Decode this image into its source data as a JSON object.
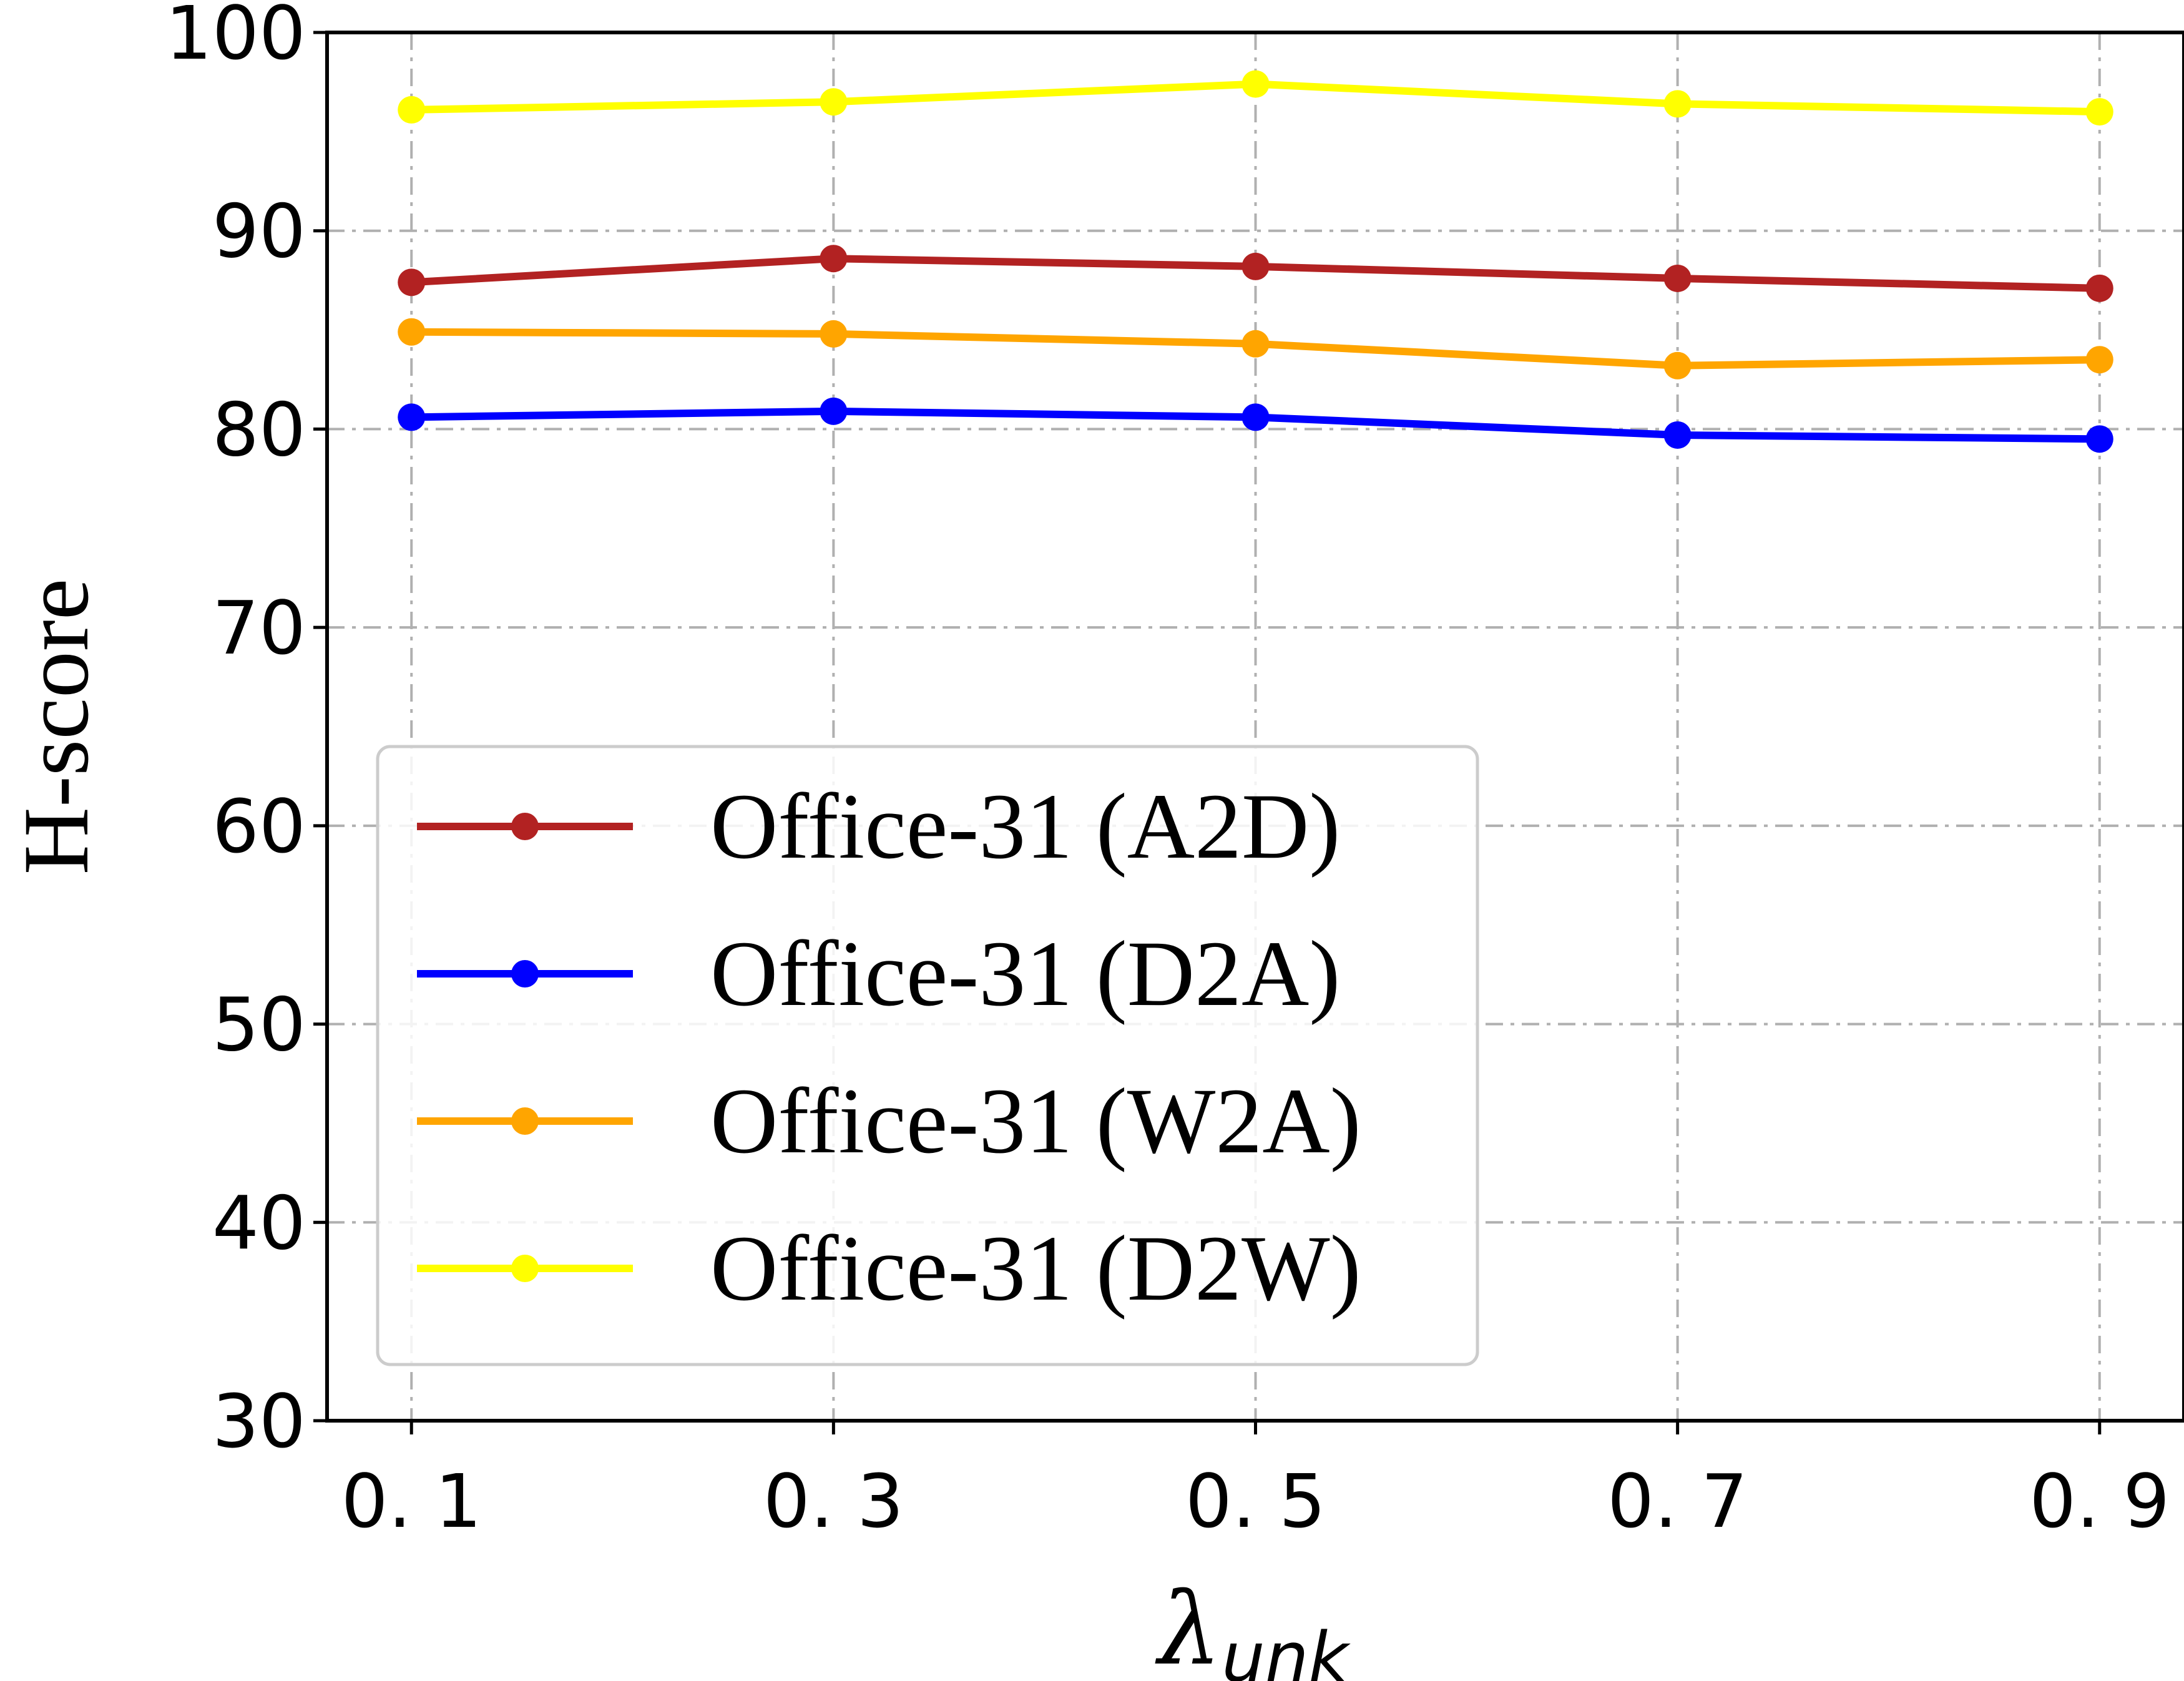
{
  "chart_data": {
    "type": "line",
    "x": [
      0.1,
      0.3,
      0.5,
      0.7,
      0.9
    ],
    "x_tick_labels": [
      "0. 1",
      "0. 3",
      "0. 5",
      "0. 7",
      "0. 9"
    ],
    "y_ticks": [
      30,
      40,
      50,
      60,
      70,
      80,
      90,
      100
    ],
    "ylim": [
      30,
      100
    ],
    "xlim": [
      0.06,
      0.94
    ],
    "ylabel": "H-score",
    "xlabel": {
      "symbol": "λ",
      "subscript": "unk"
    },
    "grid": true,
    "legend_position": "lower-left",
    "series": [
      {
        "name": "Office-31 (A2D)",
        "color": "#b22222",
        "values": [
          87.4,
          88.6,
          88.2,
          87.6,
          87.1
        ]
      },
      {
        "name": "Office-31 (D2A)",
        "color": "#0000ff",
        "values": [
          80.6,
          80.9,
          80.6,
          79.7,
          79.5
        ]
      },
      {
        "name": "Office-31 (W2A)",
        "color": "#ffa500",
        "values": [
          84.9,
          84.8,
          84.3,
          83.2,
          83.5
        ]
      },
      {
        "name": "Office-31 (D2W)",
        "color": "#ffff00",
        "values": [
          96.1,
          96.5,
          97.4,
          96.4,
          96.0
        ]
      }
    ]
  }
}
